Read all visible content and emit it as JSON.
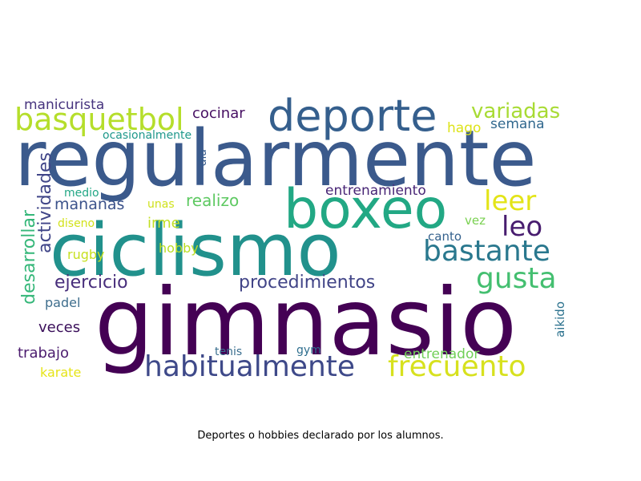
{
  "wordcloud": {
    "words": [
      {
        "text": "regularmente",
        "color": "#3b5a8c"
      },
      {
        "text": "gimnasio",
        "color": "#440154"
      },
      {
        "text": "ciclismo",
        "color": "#21918c"
      },
      {
        "text": "boxeo",
        "color": "#22a884"
      },
      {
        "text": "deporte",
        "color": "#355f8d"
      },
      {
        "text": "basquetbol",
        "color": "#b5de2b"
      },
      {
        "text": "habitualmente",
        "color": "#3e4989"
      },
      {
        "text": "frecuento",
        "color": "#d7e11e"
      },
      {
        "text": "bastante",
        "color": "#2a788e"
      },
      {
        "text": "gusta",
        "color": "#44bf70"
      },
      {
        "text": "leer",
        "color": "#e3e418"
      },
      {
        "text": "leo",
        "color": "#481d6f"
      },
      {
        "text": "variadas",
        "color": "#a8db34"
      },
      {
        "text": "procedimientos",
        "color": "#414487"
      },
      {
        "text": "actividades",
        "color": "#404588"
      },
      {
        "text": "ejercicio",
        "color": "#472d7b"
      },
      {
        "text": "desarrollar",
        "color": "#35b779"
      },
      {
        "text": "realizo",
        "color": "#5ec962"
      },
      {
        "text": "mananas",
        "color": "#3b528b"
      },
      {
        "text": "entrenamiento",
        "color": "#482576"
      },
      {
        "text": "manicurista",
        "color": "#46337e"
      },
      {
        "text": "cocinar",
        "color": "#471063"
      },
      {
        "text": "semana",
        "color": "#31688e"
      },
      {
        "text": "hago",
        "color": "#dde318"
      },
      {
        "text": "ocasionalmente",
        "color": "#1f988b"
      },
      {
        "text": "irme",
        "color": "#c2df23"
      },
      {
        "text": "veces",
        "color": "#3a0f5a"
      },
      {
        "text": "trabajo",
        "color": "#4b1b6e"
      },
      {
        "text": "padel",
        "color": "#3f6e8d"
      },
      {
        "text": "karate",
        "color": "#e6e419"
      },
      {
        "text": "rugby",
        "color": "#c7e020"
      },
      {
        "text": "hobby",
        "color": "#bbdd23"
      },
      {
        "text": "canto",
        "color": "#34618d"
      },
      {
        "text": "vez",
        "color": "#7ad151"
      },
      {
        "text": "entrenador",
        "color": "#70cf57"
      },
      {
        "text": "aikido",
        "color": "#2c728e"
      },
      {
        "text": "tenis",
        "color": "#3b6f8f"
      },
      {
        "text": "gym",
        "color": "#2e6e8e"
      },
      {
        "text": "medio",
        "color": "#22a785"
      },
      {
        "text": "diseno",
        "color": "#d2e21b"
      },
      {
        "text": "unas",
        "color": "#cfe11c"
      },
      {
        "text": "dia",
        "color": "#365c8d"
      }
    ]
  },
  "caption": "Deportes o hobbies declarado por los alumnos."
}
